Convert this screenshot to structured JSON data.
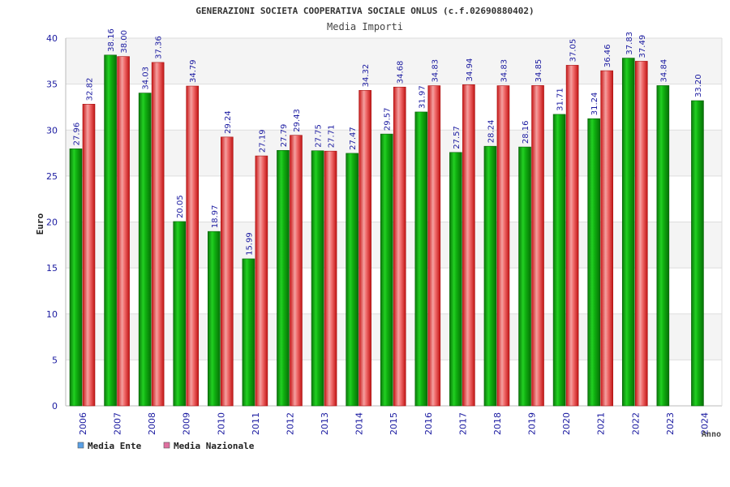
{
  "chart_data": {
    "type": "bar",
    "title": "GENERAZIONI SOCIETA COOPERATIVA SOCIALE ONLUS (c.f.02690880402)",
    "subtitle": "Media Importi",
    "ylabel": "Euro",
    "xlabel": "Anno",
    "ylim": [
      0,
      40
    ],
    "yticks": [
      0,
      5,
      10,
      15,
      20,
      25,
      30,
      35,
      40
    ],
    "categories": [
      "2006",
      "2007",
      "2008",
      "2009",
      "2010",
      "2011",
      "2012",
      "2013",
      "2014",
      "2015",
      "2016",
      "2017",
      "2018",
      "2019",
      "2020",
      "2021",
      "2022",
      "2023",
      "2024"
    ],
    "series": [
      {
        "name": "Media Ente",
        "color": "#00aa00",
        "legend_color": "#5aa0e6",
        "values": [
          27.96,
          38.16,
          34.03,
          20.05,
          18.97,
          15.99,
          27.79,
          27.75,
          27.47,
          29.57,
          31.97,
          27.57,
          28.24,
          28.16,
          31.71,
          31.24,
          37.83,
          34.84,
          33.2
        ],
        "labels": [
          "27.96",
          "38.16",
          "34.03",
          "20.05",
          "18.97",
          "15.99",
          "27.79",
          "27.75",
          "27.47",
          "29.57",
          "31.97",
          "27.57",
          "28.24",
          "28.16",
          "31.71",
          "31.24",
          "37.83",
          "34.84",
          "33.20"
        ]
      },
      {
        "name": "Media Nazionale",
        "color": "#e83030",
        "legend_color": "#e070a0",
        "values": [
          32.82,
          38.0,
          37.36,
          34.79,
          29.24,
          27.19,
          29.43,
          27.71,
          34.32,
          34.68,
          34.83,
          34.94,
          34.83,
          34.85,
          37.05,
          36.46,
          37.49,
          null,
          null
        ],
        "labels": [
          "32.82",
          "38.00",
          "37.36",
          "34.79",
          "29.24",
          "27.19",
          "29.43",
          "27.71",
          "34.32",
          "34.68",
          "34.83",
          "34.94",
          "34.83",
          "34.85",
          "37.05",
          "36.46",
          "37.49",
          null,
          null
        ]
      }
    ],
    "legend_position": "bottom-left",
    "grid": true
  }
}
